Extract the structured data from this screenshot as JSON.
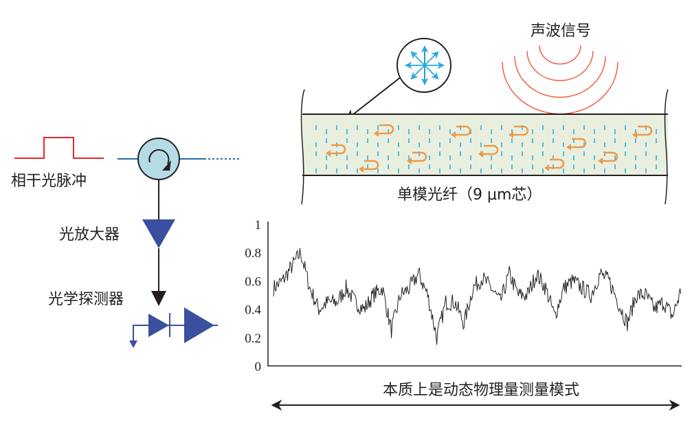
{
  "labels": {
    "pulse": "相干光脉冲",
    "amplifier": "光放大器",
    "detector": "光学探测器",
    "acoustic": "声波信号",
    "fiber": "单模光纤（9 μm芯）",
    "mode": "本质上是动态物理量测量模式"
  },
  "axis": {
    "ticks": [
      "0",
      "0.2",
      "0.4",
      "0.6",
      "0.8",
      "1"
    ],
    "ylim": [
      0,
      1
    ]
  },
  "trace_values": [
    0.55,
    0.6,
    0.7,
    0.8,
    0.55,
    0.4,
    0.45,
    0.45,
    0.55,
    0.45,
    0.4,
    0.5,
    0.55,
    0.25,
    0.5,
    0.55,
    0.65,
    0.5,
    0.2,
    0.45,
    0.45,
    0.3,
    0.55,
    0.62,
    0.55,
    0.45,
    0.65,
    0.5,
    0.5,
    0.65,
    0.55,
    0.35,
    0.55,
    0.6,
    0.55,
    0.5,
    0.65,
    0.6,
    0.45,
    0.3,
    0.5,
    0.5,
    0.4,
    0.45,
    0.35,
    0.55
  ],
  "colors": {
    "pulse": "#e8262b",
    "fiber_line": "#1f6fb2",
    "fiber_fill": "#e8efdf",
    "scatter": "#29a8e0",
    "backscatter": "#ee9a4c",
    "component": "#3a4fa0",
    "acoustic": "#ef4a2d",
    "circulator": "#b5dbe6"
  }
}
